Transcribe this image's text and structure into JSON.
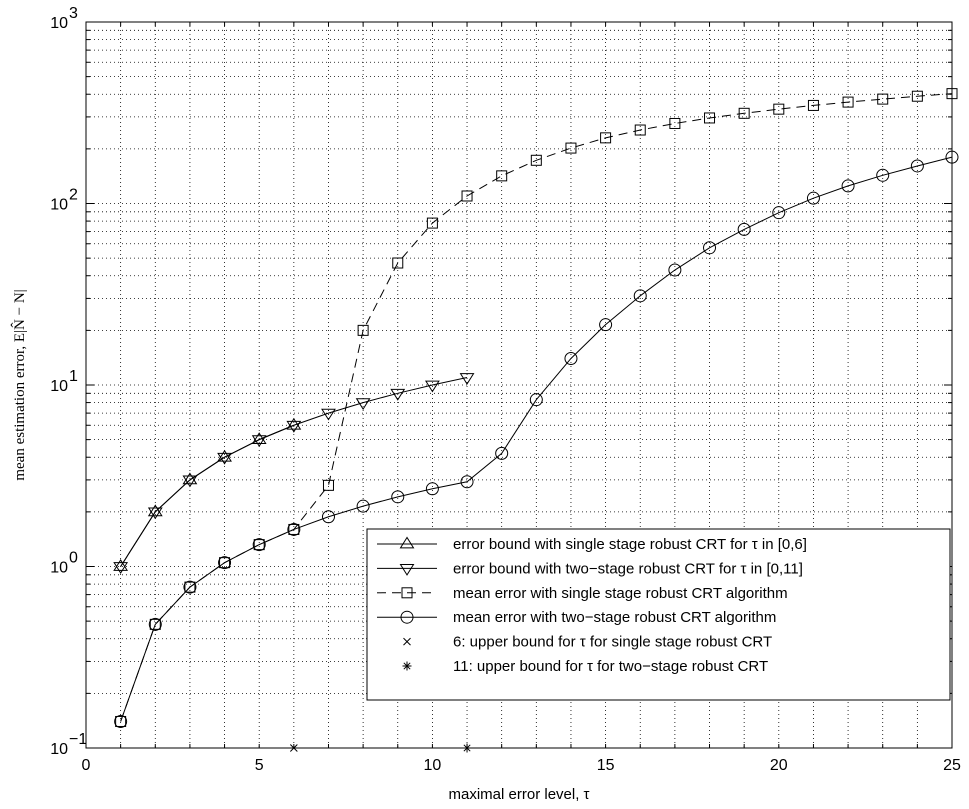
{
  "chart_data": {
    "type": "line",
    "xlabel": "maximal error level, τ",
    "ylabel": "mean estimation error, E|N̂ − N|",
    "xlim": [
      0,
      25
    ],
    "ylim": [
      0.1,
      1000
    ],
    "yscale": "log",
    "grid": true,
    "legend_position": "bottom-right",
    "xticks": [
      "0",
      "5",
      "10",
      "15",
      "20",
      "25"
    ],
    "yticks": [
      {
        "base": "10",
        "exp": "−1",
        "value": 0.1
      },
      {
        "base": "10",
        "exp": "0",
        "value": 1
      },
      {
        "base": "10",
        "exp": "1",
        "value": 10
      },
      {
        "base": "10",
        "exp": "2",
        "value": 100
      },
      {
        "base": "10",
        "exp": "3",
        "value": 1000
      }
    ],
    "series": [
      {
        "name": "error bound with single stage robust CRT for τ in [0,6]",
        "marker": "triangle-up",
        "linestyle": "solid",
        "x": [
          1,
          2,
          3,
          4,
          5,
          6
        ],
        "y": [
          1,
          2,
          3,
          4,
          5,
          6
        ]
      },
      {
        "name": "error bound with two−stage robust CRT for τ in [0,11]",
        "marker": "triangle-down",
        "linestyle": "solid",
        "x": [
          1,
          2,
          3,
          4,
          5,
          6,
          7,
          8,
          9,
          10,
          11
        ],
        "y": [
          1,
          2,
          3,
          4,
          5,
          6,
          7,
          8,
          9,
          10,
          11
        ]
      },
      {
        "name": "mean error with single stage robust CRT algorithm",
        "marker": "square",
        "linestyle": "dashed",
        "x": [
          1,
          2,
          3,
          4,
          5,
          6,
          7,
          8,
          9,
          10,
          11,
          12,
          13,
          14,
          15,
          16,
          17,
          18,
          19,
          20,
          21,
          22,
          23,
          24,
          25
        ],
        "y": [
          0.14,
          0.48,
          0.77,
          1.05,
          1.32,
          1.6,
          2.8,
          20,
          47,
          78,
          110,
          142,
          173,
          202,
          230,
          254,
          276,
          296,
          314,
          331,
          347,
          362,
          376,
          390,
          403
        ]
      },
      {
        "name": "mean error with two−stage robust CRT algorithm",
        "marker": "circle",
        "linestyle": "solid",
        "x": [
          1,
          2,
          3,
          4,
          5,
          6,
          7,
          8,
          9,
          10,
          11,
          12,
          13,
          14,
          15,
          16,
          17,
          18,
          19,
          20,
          21,
          22,
          23,
          24,
          25
        ],
        "y": [
          0.14,
          0.48,
          0.77,
          1.05,
          1.32,
          1.6,
          1.88,
          2.15,
          2.42,
          2.68,
          2.93,
          4.2,
          8.3,
          14,
          21.5,
          31,
          43,
          57,
          72,
          89,
          107,
          125,
          143,
          161,
          180
        ]
      },
      {
        "name": "6: upper bound for τ for single stage robust CRT",
        "marker": "x",
        "linestyle": "none",
        "x": [
          6
        ],
        "y": [
          0.1
        ]
      },
      {
        "name": "11: upper bound for τ for two−stage robust CRT",
        "marker": "asterisk",
        "linestyle": "none",
        "x": [
          11
        ],
        "y": [
          0.1
        ]
      }
    ]
  }
}
